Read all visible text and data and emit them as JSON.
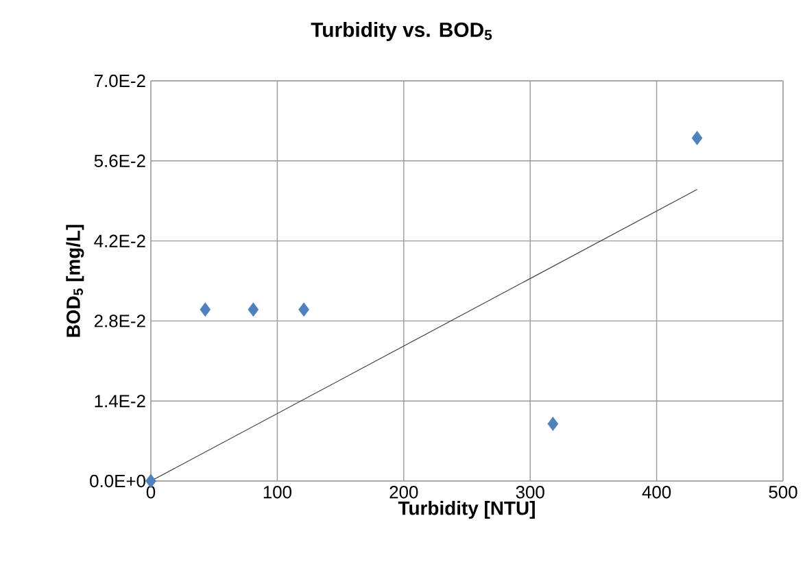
{
  "chart_data": {
    "type": "scatter",
    "title": "Turbidity vs. BOD$_{5}$",
    "xlabel": "Turbidity [NTU]",
    "ylabel": "BOD$_{5}$ [mg/L]",
    "xlim": [
      0,
      500
    ],
    "xticks": [
      0,
      100,
      200,
      300,
      400,
      500
    ],
    "ylim": [
      0,
      0.07
    ],
    "yticks": [
      {
        "value": 0,
        "label": "0.0E+0"
      },
      {
        "value": 0.014,
        "label": "1.4E-2"
      },
      {
        "value": 0.028,
        "label": "2.8E-2"
      },
      {
        "value": 0.042,
        "label": "4.2E-2"
      },
      {
        "value": 0.056,
        "label": "5.6E-2"
      },
      {
        "value": 0.07,
        "label": "7.0E-2"
      }
    ],
    "grid": true,
    "series": [
      {
        "color": "#4f81bd",
        "marker": "diamond",
        "x": [
          0,
          43,
          81,
          121,
          318,
          432
        ],
        "values": [
          0,
          0.03,
          0.03,
          0.03,
          0.01,
          0.06
        ]
      },
      {
        "type": "line",
        "color": "#404040",
        "marker": "none",
        "x": [
          0,
          432
        ],
        "values": [
          0,
          0.051
        ]
      }
    ]
  }
}
